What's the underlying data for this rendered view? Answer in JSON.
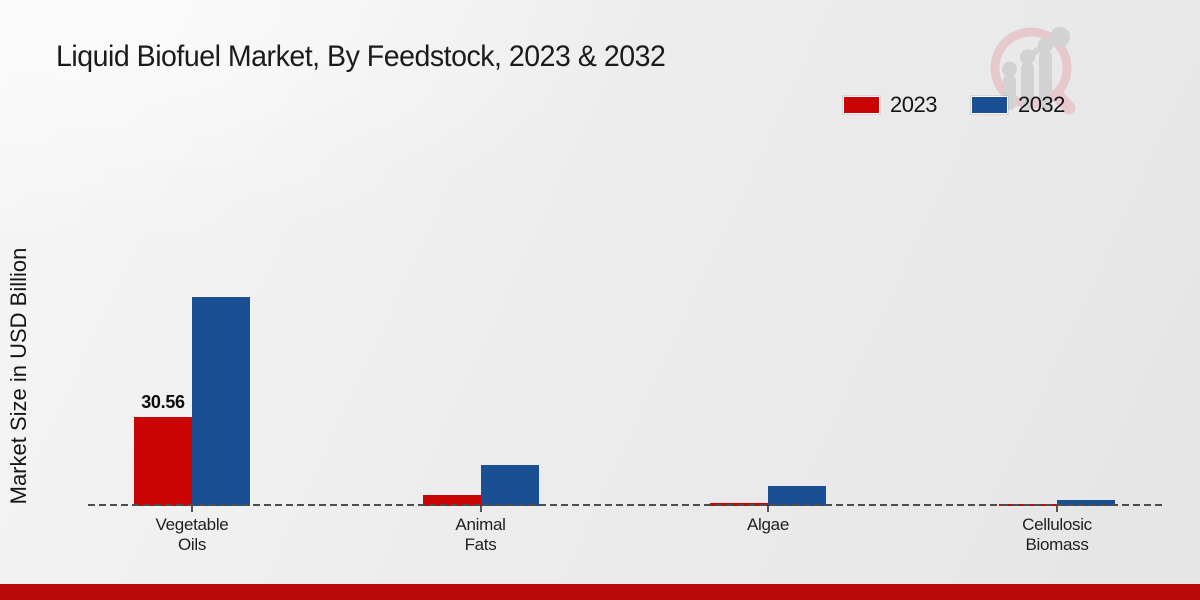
{
  "page": {
    "title": "Liquid Biofuel Market, By Feedstock, 2023 & 2032"
  },
  "legend": [
    {
      "label": "2023",
      "color": "#ca0404"
    },
    {
      "label": "2032",
      "color": "#1b4f94"
    }
  ],
  "chart_data": {
    "type": "bar",
    "title": "Liquid Biofuel Market, By Feedstock, 2023 & 2032",
    "xlabel": "",
    "ylabel": "Market Size in USD Billion",
    "categories": [
      "Vegetable Oils",
      "Animal Fats",
      "Algae",
      "Cellulosic Biomass"
    ],
    "category_lines": [
      [
        "Vegetable",
        "Oils"
      ],
      [
        "Animal",
        "Fats"
      ],
      [
        "Algae"
      ],
      [
        "Cellulosic",
        "Biomass"
      ]
    ],
    "series": [
      {
        "name": "2023",
        "color": "#ca0404",
        "values": [
          30.56,
          3.8,
          1.0,
          0.7
        ]
      },
      {
        "name": "2032",
        "color": "#1b4f94",
        "values": [
          71.8,
          14.0,
          6.9,
          2.1
        ]
      }
    ],
    "data_labels": [
      {
        "series": "2023",
        "category": "Vegetable Oils",
        "text": "30.56"
      }
    ],
    "ylim": [
      0,
      95
    ],
    "grid": false,
    "y_axis_ticks_visible": false,
    "baseline_style": "dashed",
    "legend_position": "top-right"
  },
  "colors": {
    "bar_2023": "#ca0404",
    "bar_2032": "#1b4f94",
    "footer_band": "#b90808",
    "baseline": "#4d4d4d",
    "background": "#ededed"
  },
  "logo": {
    "name": "magnifier-growth-chart-watermark"
  }
}
